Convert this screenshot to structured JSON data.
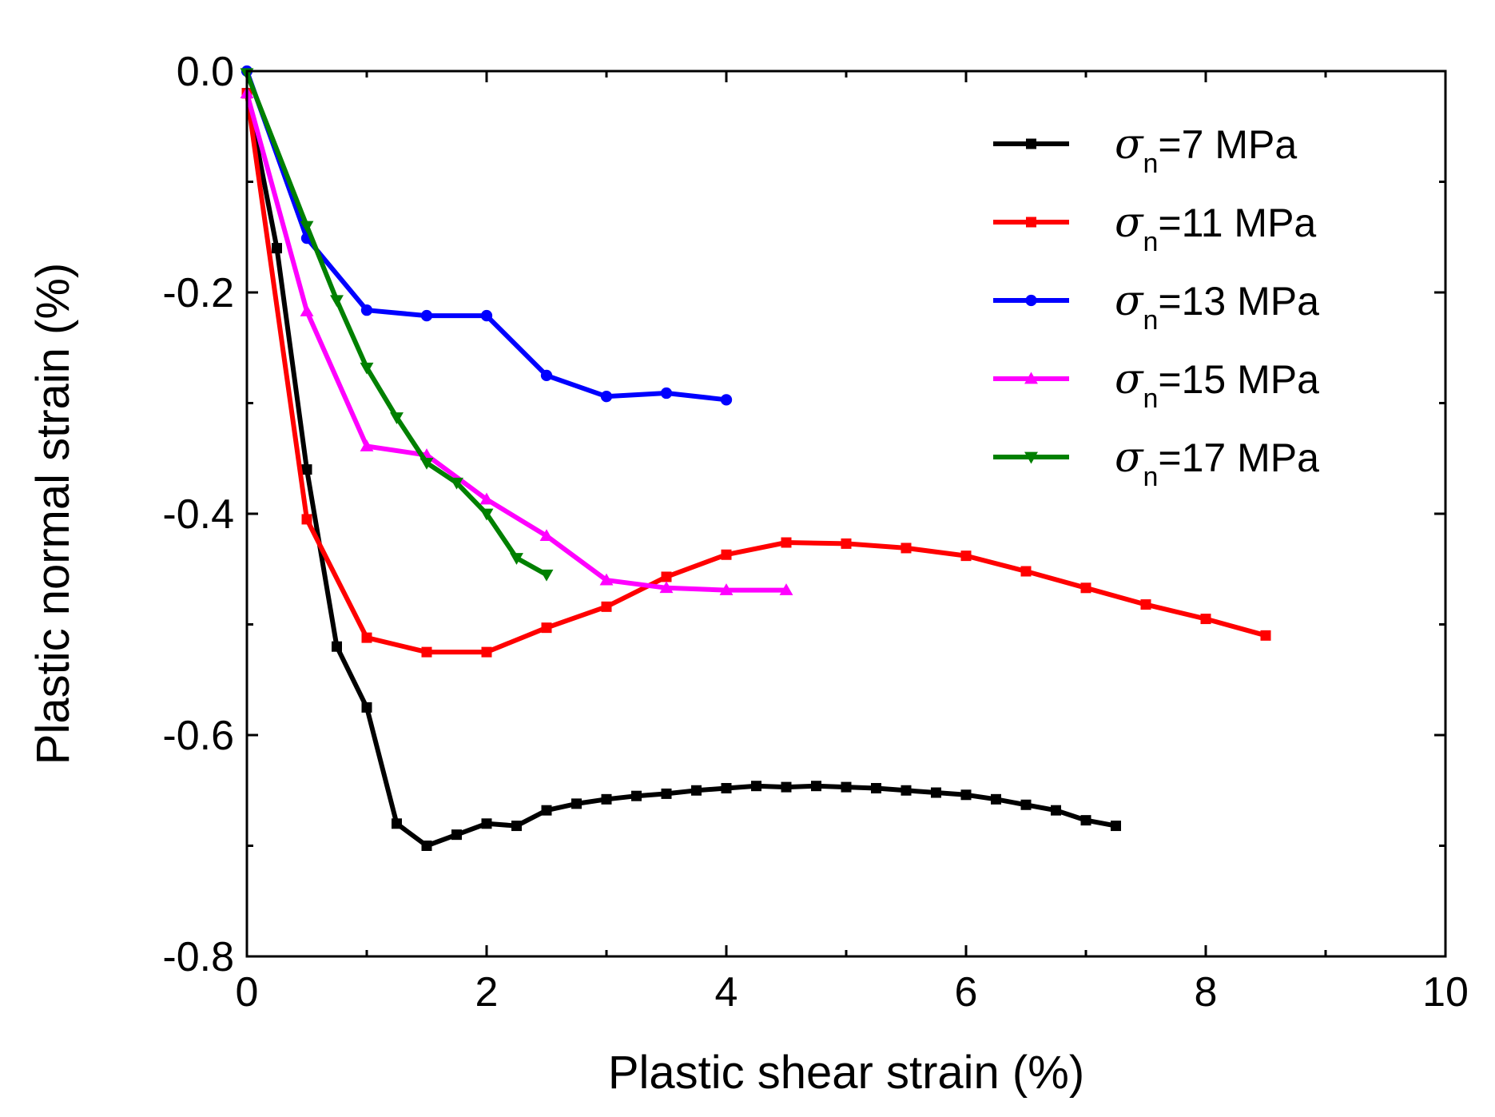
{
  "chart_data": {
    "type": "line",
    "title": "",
    "xlabel": "Plastic shear strain (%)",
    "ylabel": "Plastic normal strain (%)",
    "xlim": [
      0,
      10
    ],
    "ylim": [
      -0.8,
      0.0
    ],
    "xticks": [
      0,
      2,
      4,
      6,
      8,
      10
    ],
    "xtick_labels": [
      "0",
      "2",
      "4",
      "6",
      "8",
      "10"
    ],
    "yticks": [
      0.0,
      -0.2,
      -0.4,
      -0.6,
      -0.8
    ],
    "ytick_labels": [
      "0.0",
      "-0.2",
      "-0.4",
      "-0.6",
      "-0.8"
    ],
    "grid": false,
    "legend_position": "top-right",
    "series": [
      {
        "name": "σn=7 MPa",
        "sigma": "σ",
        "subscript": "n",
        "label_rest": "=7 MPa",
        "color": "#000000",
        "marker": "square",
        "x": [
          0,
          0.25,
          0.5,
          0.75,
          1.0,
          1.25,
          1.5,
          1.75,
          2.0,
          2.25,
          2.5,
          2.75,
          3.0,
          3.25,
          3.5,
          3.75,
          4.0,
          4.25,
          4.5,
          4.75,
          5.0,
          5.25,
          5.5,
          5.75,
          6.0,
          6.25,
          6.5,
          6.75,
          7.0,
          7.25
        ],
        "y": [
          -0.02,
          -0.16,
          -0.36,
          -0.52,
          -0.575,
          -0.68,
          -0.7,
          -0.69,
          -0.68,
          -0.682,
          -0.668,
          -0.662,
          -0.658,
          -0.655,
          -0.653,
          -0.65,
          -0.648,
          -0.646,
          -0.647,
          -0.646,
          -0.647,
          -0.648,
          -0.65,
          -0.652,
          -0.654,
          -0.658,
          -0.663,
          -0.668,
          -0.677,
          -0.682
        ]
      },
      {
        "name": "σn=11 MPa",
        "sigma": "σ",
        "subscript": "n",
        "label_rest": "=11 MPa",
        "color": "#ff0000",
        "marker": "square",
        "x": [
          0,
          0.5,
          1.0,
          1.5,
          2.0,
          2.5,
          3.0,
          3.5,
          4.0,
          4.5,
          5.0,
          5.5,
          6.0,
          6.5,
          7.0,
          7.5,
          8.0,
          8.5
        ],
        "y": [
          -0.02,
          -0.405,
          -0.512,
          -0.525,
          -0.525,
          -0.503,
          -0.484,
          -0.457,
          -0.437,
          -0.426,
          -0.427,
          -0.431,
          -0.438,
          -0.452,
          -0.467,
          -0.482,
          -0.495,
          -0.51
        ]
      },
      {
        "name": "σn=13 MPa",
        "sigma": "σ",
        "subscript": "n",
        "label_rest": "=13 MPa",
        "color": "#0000ff",
        "marker": "circle",
        "x": [
          0,
          0.5,
          1.0,
          1.5,
          2.0,
          2.5,
          3.0,
          3.5,
          4.0
        ],
        "y": [
          0.0,
          -0.151,
          -0.216,
          -0.221,
          -0.221,
          -0.275,
          -0.294,
          -0.291,
          -0.297
        ]
      },
      {
        "name": "σn=15 MPa",
        "sigma": "σ",
        "subscript": "n",
        "label_rest": "=15 MPa",
        "color": "#ff00ff",
        "marker": "triangle-up",
        "x": [
          0,
          0.5,
          1.0,
          1.5,
          2.0,
          2.5,
          3.0,
          3.5,
          4.0,
          4.5
        ],
        "y": [
          -0.02,
          -0.217,
          -0.339,
          -0.347,
          -0.387,
          -0.42,
          -0.46,
          -0.467,
          -0.469,
          -0.469
        ]
      },
      {
        "name": "σn=17 MPa",
        "sigma": "σ",
        "subscript": "n",
        "label_rest": "=17 MPa",
        "color": "#008000",
        "marker": "triangle-down",
        "x": [
          0,
          0.5,
          0.75,
          1.0,
          1.25,
          1.5,
          1.75,
          2.0,
          2.25,
          2.5
        ],
        "y": [
          -0.002,
          -0.14,
          -0.207,
          -0.268,
          -0.313,
          -0.354,
          -0.372,
          -0.4,
          -0.44,
          -0.455
        ]
      }
    ]
  }
}
